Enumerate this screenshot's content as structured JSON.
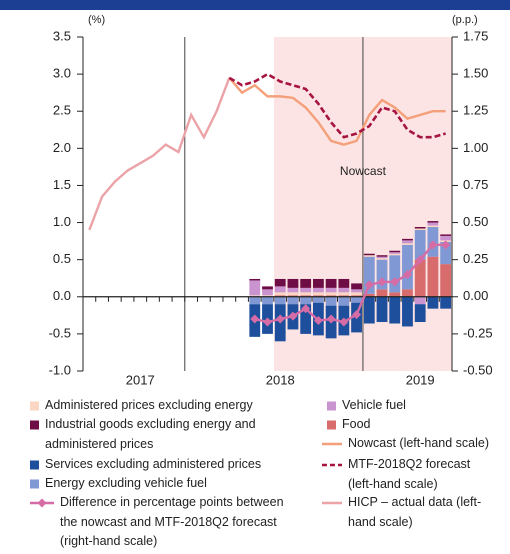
{
  "chart_data": {
    "type": "combo",
    "ylabel": "(%)",
    "y2label": "(p.p.)",
    "annotation": "Nowcast",
    "categories": [
      null,
      null,
      null,
      null,
      "2017",
      null,
      null,
      null,
      null,
      null,
      null,
      null,
      null,
      null,
      null,
      "2018",
      null,
      null,
      null,
      null,
      null,
      null,
      null,
      null,
      null,
      null,
      "2019",
      null,
      null
    ],
    "ylim": [
      -1,
      3.5
    ],
    "yticks": [
      {
        "value": -1,
        "label": "-1.0"
      },
      -0.5,
      {
        "value": 0,
        "label": "0.0"
      },
      0.5,
      {
        "value": 1,
        "label": "1.0"
      },
      1.5,
      {
        "value": 2,
        "label": "2.0"
      },
      2.5,
      {
        "value": 3,
        "label": "3.0"
      },
      3.5
    ],
    "y2lim": [
      -0.5,
      1.75
    ],
    "y2ticks": [
      {
        "value": -0.5,
        "label": "-0.50"
      },
      -0.25,
      {
        "value": 0,
        "label": "0.00"
      },
      0.25,
      {
        "value": 0.5,
        "label": "0.50"
      },
      0.75,
      {
        "value": 1,
        "label": "1.00"
      },
      1.25,
      {
        "value": 1.5,
        "label": "1.50"
      },
      1.75
    ],
    "series": [
      {
        "name": "Administered prices excluding energy",
        "type": "bar",
        "axis": "y2",
        "color": "#fbd6c2",
        "values": [
          null,
          null,
          null,
          null,
          null,
          null,
          null,
          null,
          null,
          null,
          null,
          null,
          null,
          0.01,
          0.01,
          0.02,
          0.02,
          0.02,
          0.02,
          0.02,
          0.02,
          0.02,
          0.01,
          0.01,
          0.01,
          0.01,
          0.01,
          0.01,
          0.01
        ]
      },
      {
        "name": "Industrial goods excluding energy and administered prices",
        "type": "bar",
        "axis": "y2",
        "color": "#6e0c45",
        "values": [
          null,
          null,
          null,
          null,
          null,
          null,
          null,
          null,
          null,
          null,
          null,
          null,
          null,
          0.01,
          0.02,
          0.05,
          0.06,
          0.06,
          0.06,
          0.06,
          0.06,
          0.04,
          0.01,
          0.01,
          0.01,
          0.01,
          0.01,
          0.01,
          0.01
        ]
      },
      {
        "name": "Services excluding administered prices",
        "type": "bar",
        "axis": "y2",
        "color": "#1d4f9c",
        "values": [
          null,
          null,
          null,
          null,
          null,
          null,
          null,
          null,
          null,
          null,
          null,
          null,
          null,
          -0.22,
          -0.2,
          -0.25,
          -0.17,
          -0.2,
          -0.22,
          -0.22,
          -0.2,
          -0.2,
          -0.18,
          -0.17,
          -0.18,
          -0.2,
          -0.12,
          -0.08,
          -0.08
        ]
      },
      {
        "name": "Energy excluding vehicle fuel",
        "type": "bar",
        "axis": "y2",
        "color": "#8098d3",
        "values": [
          null,
          null,
          null,
          null,
          null,
          null,
          null,
          null,
          null,
          null,
          null,
          null,
          null,
          -0.05,
          -0.05,
          -0.05,
          -0.05,
          -0.05,
          -0.04,
          -0.06,
          -0.06,
          -0.04,
          0.25,
          0.2,
          0.25,
          0.3,
          0.2,
          0.2,
          0.15
        ]
      },
      {
        "name": "Difference in percentage points between the nowcast and MTF-2018Q2 forecast (right-hand scale)",
        "type": "line",
        "axis": "y2",
        "color": "#d66ca6",
        "marker": "diamond",
        "values": [
          null,
          null,
          null,
          null,
          null,
          null,
          null,
          null,
          null,
          null,
          null,
          null,
          null,
          -0.15,
          -0.17,
          -0.15,
          -0.13,
          -0.08,
          -0.16,
          -0.15,
          -0.17,
          -0.12,
          0.08,
          0.1,
          0.1,
          0.15,
          0.25,
          0.35,
          0.35
        ]
      },
      {
        "name": "Vehicle fuel",
        "type": "bar",
        "axis": "y2",
        "color": "#c994cf",
        "values": [
          null,
          null,
          null,
          null,
          null,
          null,
          null,
          null,
          null,
          null,
          null,
          null,
          null,
          0.1,
          0.04,
          0.04,
          0.03,
          0.03,
          0.03,
          0.03,
          0.03,
          0.02,
          0,
          0.01,
          0.01,
          0.02,
          -0.05,
          0.02,
          0.03
        ]
      },
      {
        "name": "Food",
        "type": "bar",
        "axis": "y2",
        "color": "#d86b6b",
        "values": [
          null,
          null,
          null,
          null,
          null,
          null,
          null,
          null,
          null,
          null,
          null,
          null,
          null,
          0,
          0,
          0.01,
          0.01,
          0.01,
          0.01,
          0.01,
          0.01,
          0.01,
          0.02,
          0.05,
          0.03,
          0.05,
          0.25,
          0.27,
          0.22
        ]
      },
      {
        "name": "Nowcast (left-hand scale)",
        "type": "line",
        "axis": "y",
        "color": "#f4a07a",
        "values": [
          null,
          null,
          null,
          null,
          null,
          null,
          null,
          null,
          null,
          null,
          null,
          2.95,
          2.75,
          2.85,
          2.7,
          2.7,
          2.68,
          2.55,
          2.35,
          2.1,
          2.05,
          2.1,
          2.45,
          2.65,
          2.55,
          2.4,
          2.45,
          2.5,
          2.5
        ]
      },
      {
        "name": "MTF-2018Q2 forecast (left-hand scale)",
        "type": "line",
        "axis": "y",
        "color": "#a6143f",
        "dash": true,
        "values": [
          null,
          null,
          null,
          null,
          null,
          null,
          null,
          null,
          null,
          null,
          null,
          2.95,
          2.85,
          2.9,
          3.0,
          2.9,
          2.85,
          2.8,
          2.6,
          2.35,
          2.15,
          2.2,
          2.3,
          2.55,
          2.5,
          2.25,
          2.15,
          2.15,
          2.2
        ]
      },
      {
        "name": "HICP – actual data (left-hand scale)",
        "type": "line",
        "axis": "y",
        "color": "#eca3a8",
        "values": [
          0.9,
          1.35,
          1.55,
          1.7,
          1.8,
          1.9,
          2.05,
          1.95,
          2.45,
          2.15,
          2.5,
          2.95,
          null,
          null,
          null,
          null,
          null,
          null,
          null,
          null,
          null,
          null,
          null,
          null,
          null,
          null,
          null,
          null,
          null
        ]
      }
    ]
  }
}
